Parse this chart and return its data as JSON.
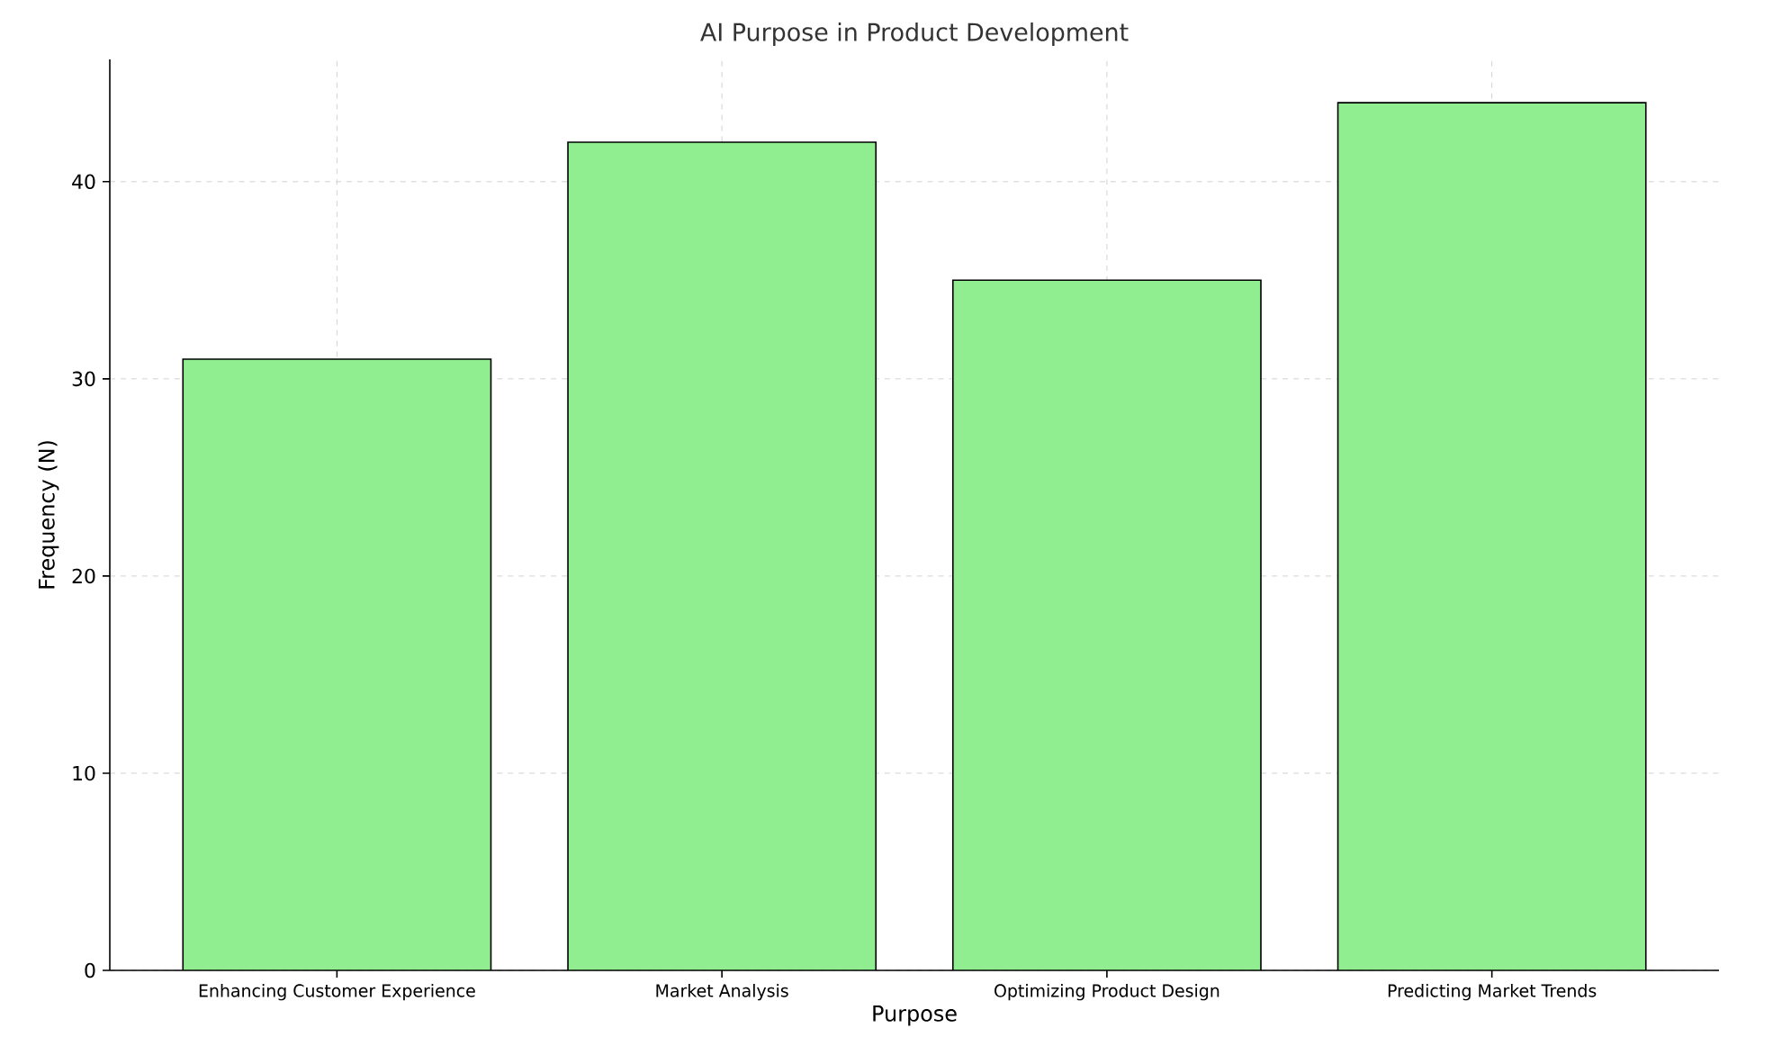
{
  "chart_data": {
    "type": "bar",
    "title": "AI Purpose in Product Development",
    "xlabel": "Purpose",
    "ylabel": "Frequency (N)",
    "categories": [
      "Enhancing Customer Experience",
      "Market Analysis",
      "Optimizing Product Design",
      "Predicting Market Trends"
    ],
    "values": [
      31,
      42,
      35,
      44
    ],
    "color": "#90ee90",
    "ylim": [
      0,
      46.2
    ],
    "yticks": [
      0,
      10,
      20,
      30,
      40
    ],
    "grid": true
  }
}
